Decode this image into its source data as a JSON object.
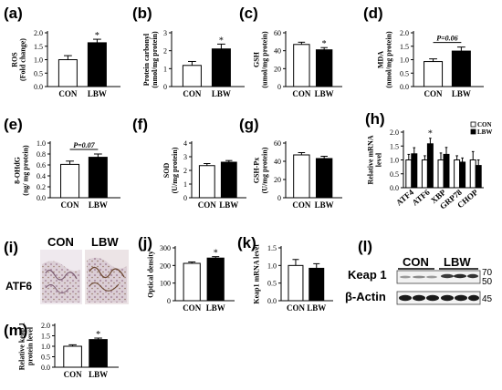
{
  "colors": {
    "con": "#ffffff",
    "lbw": "#000000",
    "stroke": "#000000"
  },
  "chart_data": [
    {
      "id": "a",
      "panel": "(a)",
      "type": "bar",
      "categories": [
        "CON",
        "LBW"
      ],
      "values": [
        1.0,
        1.63
      ],
      "errors": [
        0.15,
        0.13
      ],
      "ylabel": "ROS\n(Fold change)",
      "ylim": [
        0,
        2.0
      ],
      "yticks": [
        0,
        0.5,
        1.0,
        1.5,
        2.0
      ],
      "ytick_labels": [
        "0.0",
        "0.5",
        "1.0",
        "1.5",
        "2.0"
      ],
      "annotations": [
        {
          "bar": 1,
          "text": "*"
        }
      ]
    },
    {
      "id": "b",
      "panel": "(b)",
      "type": "bar",
      "categories": [
        "CON",
        "LBW"
      ],
      "values": [
        1.18,
        2.1
      ],
      "errors": [
        0.22,
        0.27
      ],
      "ylabel": "Protein carbonyl\n(nmol/mg protein)",
      "ylim": [
        0,
        3
      ],
      "yticks": [
        0,
        1,
        2,
        3
      ],
      "ytick_labels": [
        "0",
        "1",
        "2",
        "3"
      ],
      "annotations": [
        {
          "bar": 1,
          "text": "*"
        }
      ]
    },
    {
      "id": "c",
      "panel": "(c)",
      "type": "bar",
      "categories": [
        "CON",
        "LBW"
      ],
      "values": [
        47,
        41
      ],
      "errors": [
        2.5,
        2.5
      ],
      "ylabel": "GSH\n(umol/mg protein)",
      "ylim": [
        0,
        60
      ],
      "yticks": [
        0,
        20,
        40,
        60
      ],
      "ytick_labels": [
        "0",
        "20",
        "40",
        "60"
      ],
      "annotations": [
        {
          "bar": 1,
          "text": "*"
        }
      ]
    },
    {
      "id": "d",
      "panel": "(d)",
      "type": "bar",
      "categories": [
        "CON",
        "LBW"
      ],
      "values": [
        0.93,
        1.32
      ],
      "errors": [
        0.1,
        0.15
      ],
      "ylabel": "MDA\n(nmol/mg protein)",
      "ylim": [
        0,
        2.0
      ],
      "yticks": [
        0,
        0.5,
        1.0,
        1.5,
        2.0
      ],
      "ytick_labels": [
        "0.0",
        "0.5",
        "1.0",
        "1.5",
        "2.0"
      ],
      "annotations": [
        {
          "bar": "bracket",
          "text": "P=0.06"
        }
      ]
    },
    {
      "id": "e",
      "panel": "(e)",
      "type": "bar",
      "categories": [
        "CON",
        "LBW"
      ],
      "values": [
        0.61,
        0.74
      ],
      "errors": [
        0.06,
        0.06
      ],
      "ylabel": "8-OHdG\n(ng/ mg protein)",
      "ylim": [
        0,
        1.0
      ],
      "yticks": [
        0,
        0.2,
        0.4,
        0.6,
        0.8,
        1.0
      ],
      "ytick_labels": [
        "0.0",
        "0.2",
        "0.4",
        "0.6",
        "0.8",
        "1.0"
      ],
      "annotations": [
        {
          "bar": "bracket",
          "text": "P=0.07"
        }
      ]
    },
    {
      "id": "f",
      "panel": "(f)",
      "type": "bar",
      "categories": [
        "CON",
        "LBW"
      ],
      "values": [
        2.35,
        2.6
      ],
      "errors": [
        0.15,
        0.12
      ],
      "ylabel": "SOD\n(U/mg protein)",
      "ylim": [
        0,
        4
      ],
      "yticks": [
        0,
        1,
        2,
        3,
        4
      ],
      "ytick_labels": [
        "0",
        "1",
        "2",
        "3",
        "4"
      ],
      "annotations": []
    },
    {
      "id": "g",
      "panel": "(g)",
      "type": "bar",
      "categories": [
        "CON",
        "LBW"
      ],
      "values": [
        47,
        43
      ],
      "errors": [
        2.5,
        2.5
      ],
      "ylabel": "GSH-Px\n(U/mg protein)",
      "ylim": [
        0,
        60
      ],
      "yticks": [
        0,
        20,
        40,
        60
      ],
      "ytick_labels": [
        "0",
        "20",
        "40",
        "60"
      ],
      "annotations": []
    },
    {
      "id": "h",
      "panel": "(h)",
      "type": "bar",
      "categories": [
        "ATF4",
        "ATF6",
        "XBP",
        "GRP78",
        "CHOP"
      ],
      "series": [
        {
          "name": "CON",
          "values": [
            1.0,
            1.0,
            1.0,
            1.0,
            1.0
          ],
          "errors": [
            0.2,
            0.15,
            0.25,
            0.15,
            0.3
          ]
        },
        {
          "name": "LBW",
          "values": [
            1.22,
            1.58,
            1.2,
            0.92,
            0.8
          ],
          "errors": [
            0.22,
            0.2,
            0.25,
            0.15,
            0.2
          ]
        }
      ],
      "ylabel": "Relative mRNA\nlevel",
      "ylim": [
        0,
        2.0
      ],
      "yticks": [
        0,
        0.5,
        1.0,
        1.5,
        2.0
      ],
      "ytick_labels": [
        "0.0",
        "0.5",
        "1.0",
        "1.5",
        "2.0"
      ],
      "annotations": [
        {
          "category": 1,
          "text": "*"
        }
      ],
      "legend": "top-right"
    },
    {
      "id": "j",
      "panel": "(j)",
      "type": "bar",
      "categories": [
        "CON",
        "LBW"
      ],
      "values": [
        212,
        242
      ],
      "errors": [
        8,
        8
      ],
      "ylabel": "Optical density",
      "ylim": [
        0,
        300
      ],
      "yticks": [
        0,
        100,
        200,
        300
      ],
      "ytick_labels": [
        "0",
        "100",
        "200",
        "300"
      ],
      "annotations": [
        {
          "bar": 1,
          "text": "*"
        }
      ]
    },
    {
      "id": "k",
      "panel": "(k)",
      "type": "bar",
      "categories": [
        "CON",
        "LBW"
      ],
      "values": [
        1.0,
        0.92
      ],
      "errors": [
        0.17,
        0.13
      ],
      "ylabel": "Keap1 mRNA level",
      "ylim": [
        0,
        1.5
      ],
      "yticks": [
        0,
        0.5,
        1.0,
        1.5
      ],
      "ytick_labels": [
        "0.0",
        "0.5",
        "1.0",
        "1.5"
      ],
      "annotations": []
    },
    {
      "id": "m",
      "panel": "(m)",
      "type": "bar",
      "categories": [
        "CON",
        "LBW"
      ],
      "values": [
        1.0,
        1.32
      ],
      "errors": [
        0.07,
        0.07
      ],
      "ylabel": "Relative keap 1\nprotein level",
      "ylim": [
        0,
        2.0
      ],
      "yticks": [
        0,
        0.5,
        1.0,
        1.5,
        2.0
      ],
      "ytick_labels": [
        "0.0",
        "0.5",
        "1.0",
        "1.5",
        "2.0"
      ],
      "annotations": [
        {
          "bar": 1,
          "text": "*"
        }
      ]
    }
  ],
  "ihc": {
    "panel": "(i)",
    "label": "ATF6",
    "groups": [
      "CON",
      "LBW"
    ]
  },
  "blot": {
    "panel": "(l)",
    "groups": [
      "CON",
      "LBW"
    ],
    "rows": [
      "Keap 1",
      "β-Actin"
    ],
    "markers": [
      "70",
      "50",
      "45"
    ]
  }
}
